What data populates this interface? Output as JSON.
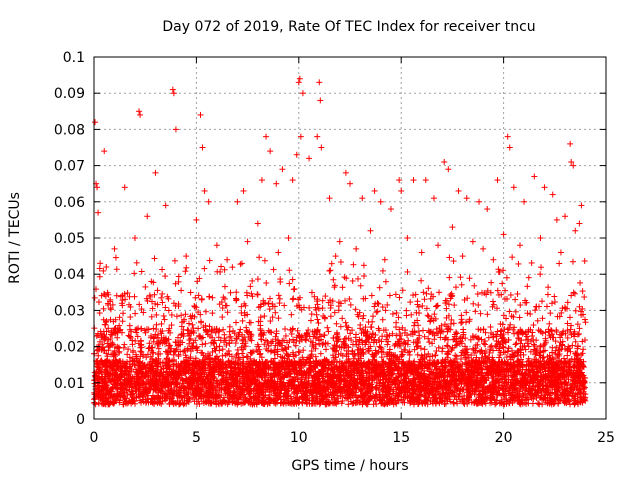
{
  "chart_data": {
    "type": "scatter",
    "title": "Day 072 of 2019, Rate Of TEC Index for receiver tncu",
    "xlabel": "GPS time / hours",
    "ylabel": "ROTI / TECUs",
    "xlim": [
      0,
      25
    ],
    "ylim": [
      0,
      0.1
    ],
    "x_ticks": [
      "0",
      "5",
      "10",
      "15",
      "20",
      "25"
    ],
    "x_tick_values": [
      0,
      5,
      10,
      15,
      20,
      25
    ],
    "y_ticks": [
      "0",
      "0.01",
      "0.02",
      "0.03",
      "0.04",
      "0.05",
      "0.06",
      "0.07",
      "0.08",
      "0.09",
      "0.1"
    ],
    "y_tick_values": [
      0,
      0.01,
      0.02,
      0.03,
      0.04,
      0.05,
      0.06,
      0.07,
      0.08,
      0.09,
      0.1
    ],
    "grid": true,
    "marker": "+",
    "marker_color": "#ff0000",
    "x_data_range": [
      0,
      24
    ],
    "series": [
      {
        "name": "ROTI",
        "x": [
          0.05,
          0.1,
          0.15,
          0.2,
          0.3,
          0.5,
          1.5,
          2.2,
          2.25,
          2.6,
          3.0,
          3.5,
          3.85,
          3.9,
          4.0,
          5.2,
          5.3,
          5.4,
          5.6,
          7.0,
          7.3,
          8.2,
          8.4,
          8.6,
          8.9,
          9.2,
          9.7,
          9.9,
          10.0,
          10.05,
          10.1,
          10.2,
          10.5,
          10.9,
          11.0,
          11.05,
          11.1,
          11.5,
          12.3,
          12.5,
          13.1,
          13.7,
          14.0,
          14.5,
          14.9,
          15.0,
          15.6,
          16.2,
          16.6,
          17.1,
          17.3,
          17.8,
          18.2,
          18.8,
          19.2,
          19.7,
          20.2,
          20.3,
          20.5,
          21.0,
          21.5,
          22.0,
          22.4,
          22.6,
          23.0,
          23.25,
          23.3,
          23.4,
          23.7,
          23.8,
          0.6,
          1.0,
          2.0,
          2.8,
          4.5,
          5.0,
          6.0,
          6.5,
          7.5,
          8.0,
          9.0,
          9.5,
          11.8,
          12.0,
          12.8,
          13.5,
          14.2,
          15.3,
          16.0,
          16.8,
          17.5,
          18.0,
          18.5,
          19.0,
          19.5,
          20.0,
          20.8,
          21.8,
          22.8,
          23.5
        ],
        "y": [
          0.082,
          0.065,
          0.064,
          0.057,
          0.043,
          0.074,
          0.064,
          0.085,
          0.084,
          0.056,
          0.068,
          0.059,
          0.091,
          0.09,
          0.08,
          0.084,
          0.075,
          0.063,
          0.06,
          0.06,
          0.063,
          0.066,
          0.078,
          0.074,
          0.065,
          0.069,
          0.066,
          0.073,
          0.093,
          0.094,
          0.078,
          0.09,
          0.072,
          0.078,
          0.093,
          0.088,
          0.075,
          0.061,
          0.068,
          0.065,
          0.061,
          0.063,
          0.06,
          0.058,
          0.066,
          0.063,
          0.066,
          0.066,
          0.061,
          0.071,
          0.069,
          0.063,
          0.061,
          0.06,
          0.058,
          0.066,
          0.078,
          0.075,
          0.064,
          0.06,
          0.067,
          0.064,
          0.062,
          0.055,
          0.056,
          0.076,
          0.071,
          0.07,
          0.054,
          0.059,
          0.042,
          0.047,
          0.05,
          0.038,
          0.045,
          0.055,
          0.048,
          0.044,
          0.049,
          0.054,
          0.046,
          0.05,
          0.045,
          0.049,
          0.047,
          0.052,
          0.044,
          0.05,
          0.046,
          0.048,
          0.053,
          0.045,
          0.049,
          0.047,
          0.044,
          0.051,
          0.048,
          0.05,
          0.046,
          0.052
        ]
      }
    ]
  }
}
